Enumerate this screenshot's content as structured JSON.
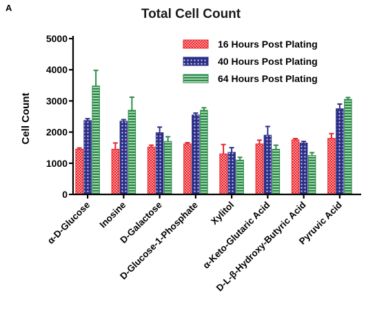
{
  "panel_label": "A",
  "chart_data": {
    "type": "bar",
    "title": "Total Cell Count",
    "xlabel": "",
    "ylabel": "Cell Count",
    "ylim": [
      0,
      5000
    ],
    "yticks": [
      0,
      1000,
      2000,
      3000,
      4000,
      5000
    ],
    "grid": false,
    "legend_position": "top-right",
    "categories": [
      "α-D-Glucose",
      "Inosine",
      "D-Galactose",
      "D-Glucose-1-Phosphate",
      "Xylitol",
      "α-Keto-Glutaric Acid",
      "D-L-β-Hydroxy-Butyric Acid",
      "Pyruvic Acid"
    ],
    "series": [
      {
        "name": "16 Hours Post Plating",
        "color": "#e8222a",
        "pattern": "checker",
        "values": [
          1450,
          1450,
          1520,
          1620,
          1300,
          1620,
          1750,
          1800
        ],
        "errors": [
          40,
          200,
          60,
          40,
          300,
          120,
          40,
          150
        ]
      },
      {
        "name": "40 Hours Post Plating",
        "color": "#2c2f86",
        "pattern": "dots",
        "values": [
          2370,
          2350,
          1980,
          2550,
          1350,
          1900,
          1650,
          2750
        ],
        "errors": [
          60,
          50,
          180,
          60,
          150,
          280,
          50,
          150
        ]
      },
      {
        "name": "64 Hours Post Plating",
        "color": "#2f8a4a",
        "pattern": "hstripes",
        "values": [
          3480,
          2700,
          1700,
          2700,
          1100,
          1450,
          1250,
          3050
        ],
        "errors": [
          500,
          420,
          150,
          80,
          90,
          130,
          90,
          60
        ]
      }
    ]
  }
}
